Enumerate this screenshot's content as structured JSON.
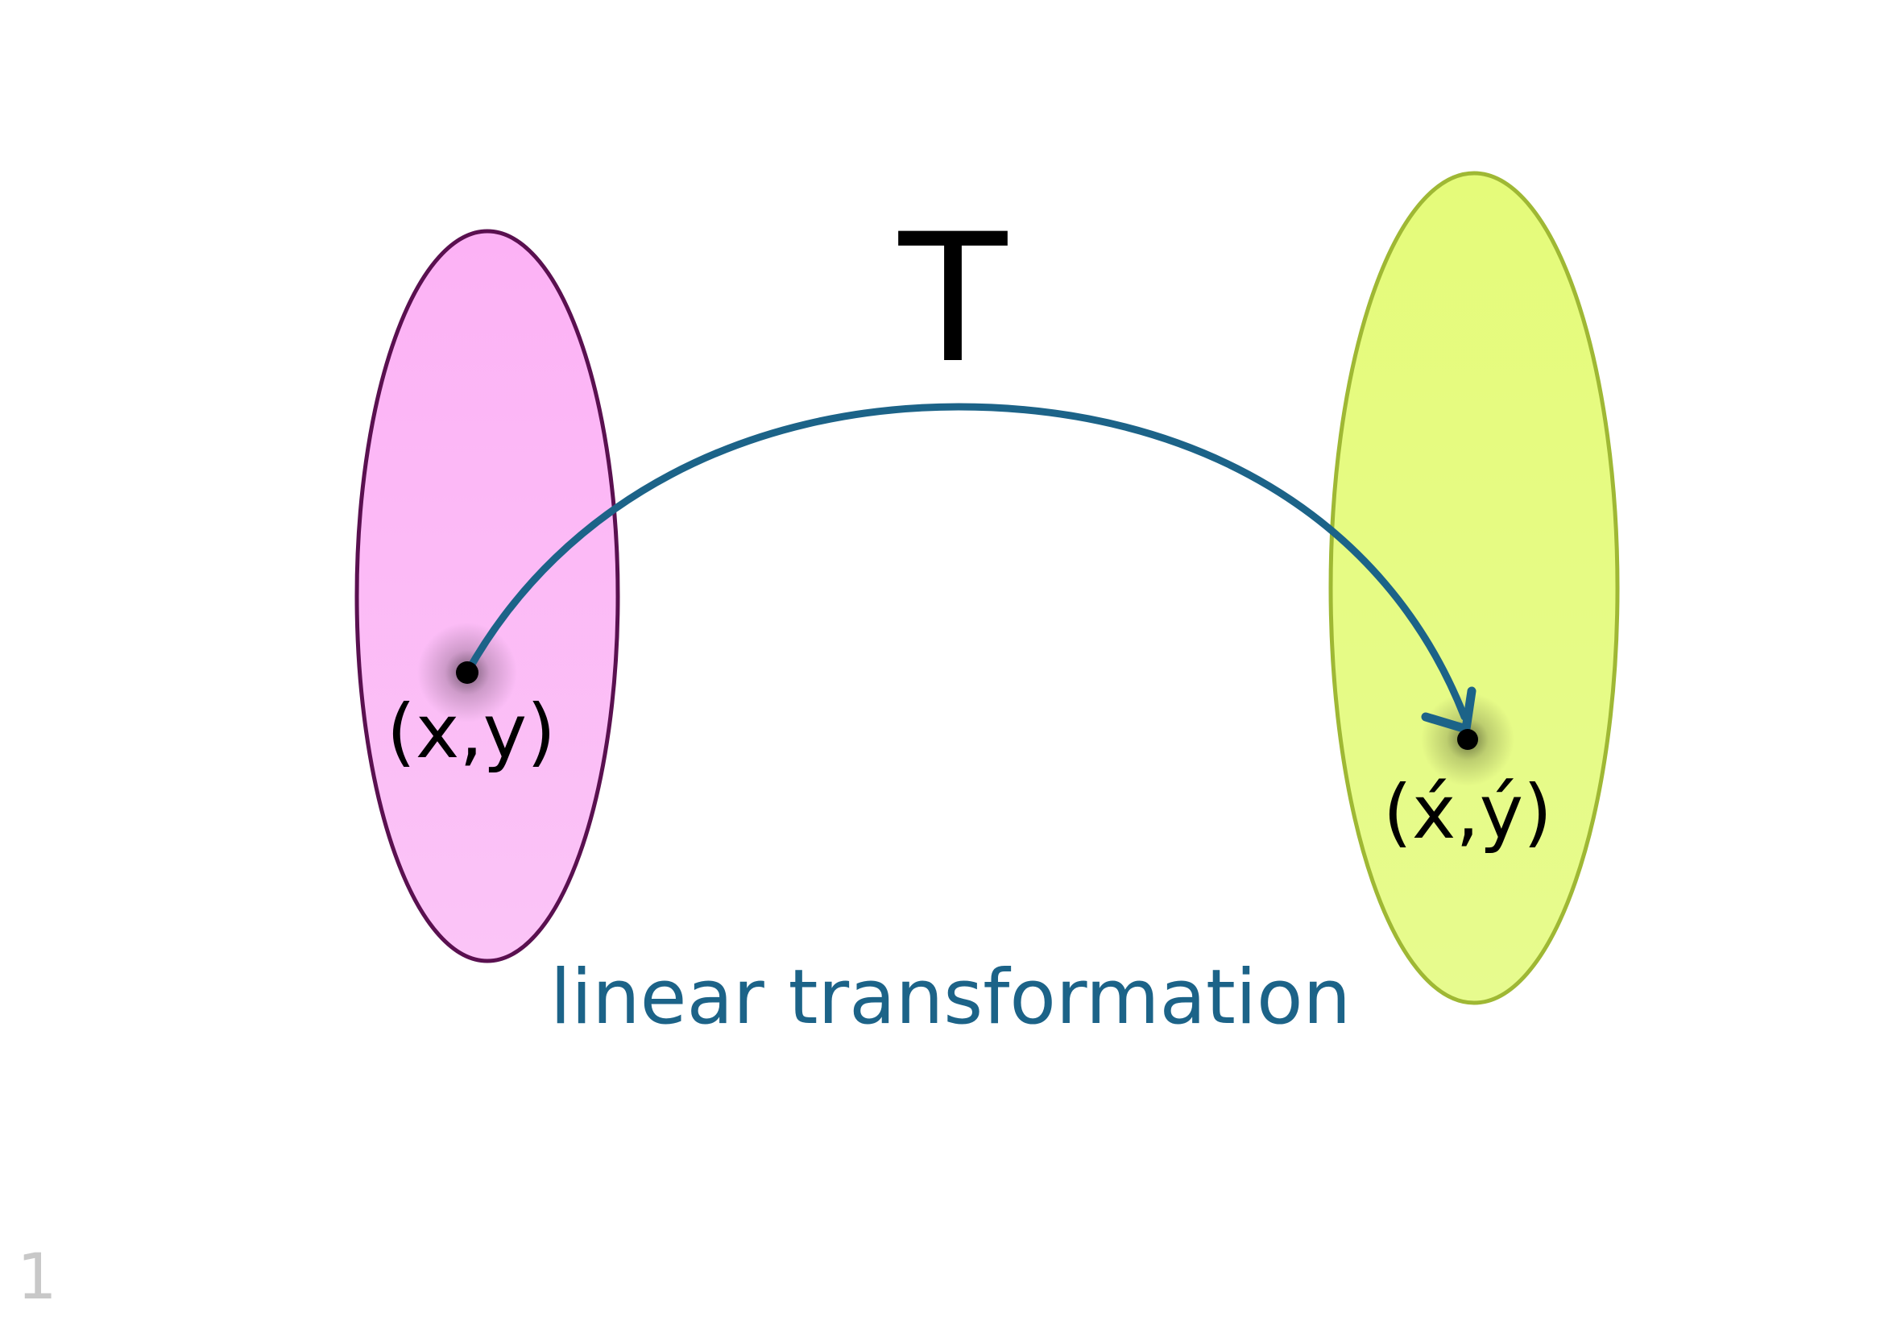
{
  "diagram": {
    "map_label": "T",
    "source_point_label": "(x,y)",
    "target_point_label": "(x́,ý)",
    "caption": "linear transformation",
    "page_number": "1"
  },
  "colors": {
    "background": "#ffffff",
    "domain_fill": "#fbb9f6",
    "domain_stroke": "#5a1050",
    "codomain_fill": "#e6fb82",
    "codomain_stroke": "#9fb834",
    "arrow": "#1c6388",
    "point": "#000000",
    "caption": "#1c6388",
    "page_number": "#c8c8c8"
  },
  "icons": {
    "arrowhead": "arrowhead-icon"
  }
}
